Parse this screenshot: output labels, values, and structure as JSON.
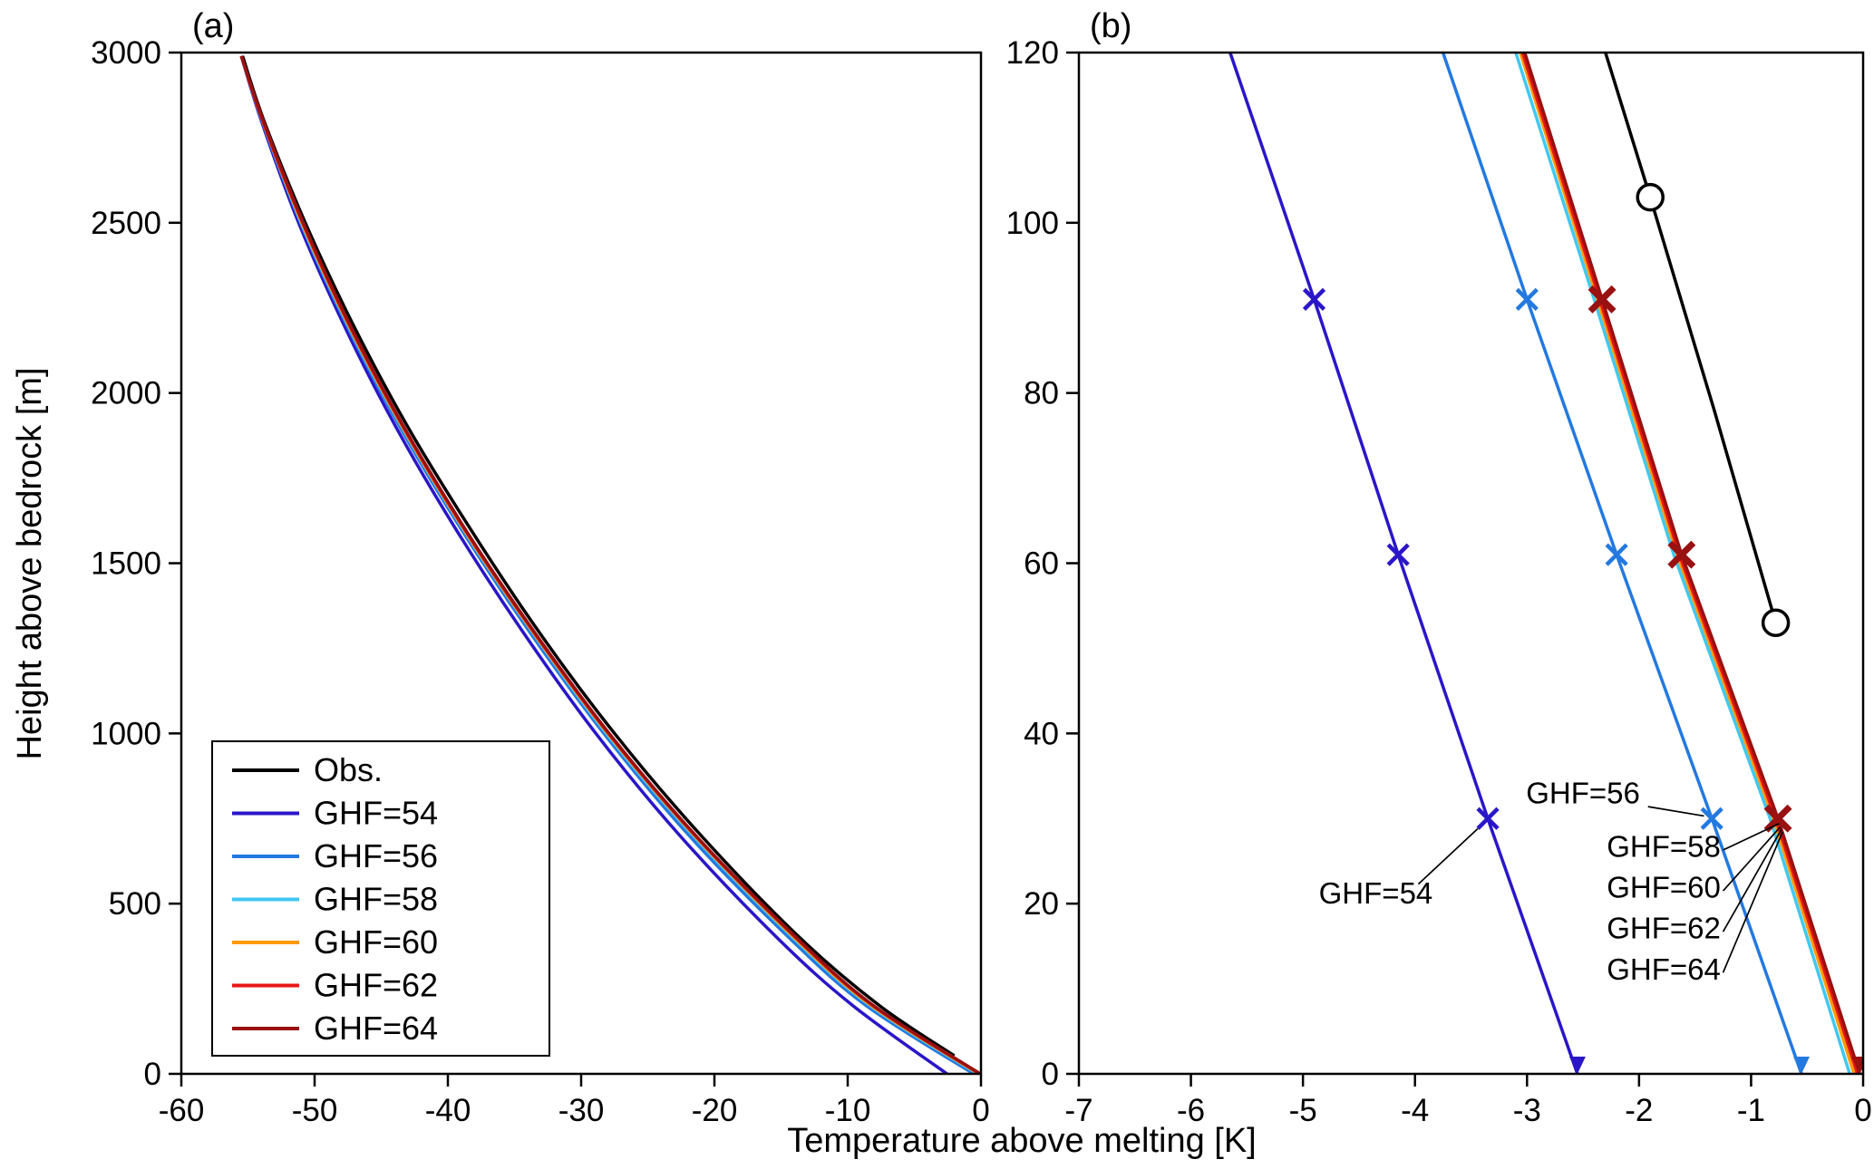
{
  "figure": {
    "background": "#ffffff",
    "shared_xlabel": "Temperature above melting [K]"
  },
  "chart_data": [
    {
      "id": "a",
      "type": "line",
      "panel_label": "(a)",
      "ylabel": "Height above bedrock [m]",
      "xlim": [
        -60,
        0
      ],
      "ylim": [
        0,
        3000
      ],
      "xticks": [
        -60,
        -50,
        -40,
        -30,
        -20,
        -10,
        0
      ],
      "yticks": [
        0,
        500,
        1000,
        1500,
        2000,
        2500,
        3000
      ],
      "smooth": true,
      "grid": false,
      "legend": {
        "show": true,
        "position": "lower-left"
      },
      "series": [
        {
          "name": "Obs.",
          "color": "#000000",
          "points": [
            [
              -55.4,
              2990
            ],
            [
              -53.8,
              2800
            ],
            [
              -50.7,
              2500
            ],
            [
              -47.1,
              2200
            ],
            [
              -43.0,
              1900
            ],
            [
              -38.3,
              1600
            ],
            [
              -33.2,
              1300
            ],
            [
              -27.5,
              1000
            ],
            [
              -21.0,
              700
            ],
            [
              -13.6,
              400
            ],
            [
              -7.6,
              200
            ],
            [
              -2.0,
              53
            ]
          ]
        },
        {
          "name": "GHF=54",
          "color": "#2a16c8",
          "points": [
            [
              -55.5,
              2990
            ],
            [
              -54.0,
              2800
            ],
            [
              -51.2,
              2500
            ],
            [
              -47.8,
              2200
            ],
            [
              -43.9,
              1900
            ],
            [
              -39.4,
              1600
            ],
            [
              -34.4,
              1300
            ],
            [
              -28.9,
              1000
            ],
            [
              -22.6,
              700
            ],
            [
              -15.3,
              400
            ],
            [
              -9.6,
              200
            ],
            [
              -2.55,
              0
            ]
          ]
        },
        {
          "name": "GHF=56",
          "color": "#2379e0",
          "points": [
            [
              -55.5,
              2990
            ],
            [
              -53.95,
              2800
            ],
            [
              -51.05,
              2500
            ],
            [
              -47.6,
              2200
            ],
            [
              -43.6,
              1900
            ],
            [
              -39.0,
              1600
            ],
            [
              -33.9,
              1300
            ],
            [
              -28.3,
              1000
            ],
            [
              -21.9,
              700
            ],
            [
              -14.4,
              400
            ],
            [
              -8.6,
              200
            ],
            [
              -0.55,
              0
            ]
          ]
        },
        {
          "name": "GHF=58",
          "color": "#40c8f0",
          "points": [
            [
              -55.5,
              2990
            ],
            [
              -53.9,
              2800
            ],
            [
              -51.0,
              2500
            ],
            [
              -47.5,
              2200
            ],
            [
              -43.45,
              1900
            ],
            [
              -38.85,
              1600
            ],
            [
              -33.7,
              1300
            ],
            [
              -28.1,
              1000
            ],
            [
              -21.6,
              700
            ],
            [
              -14.1,
              400
            ],
            [
              -8.3,
              200
            ],
            [
              -0.25,
              0
            ]
          ]
        },
        {
          "name": "GHF=60",
          "color": "#ff9900",
          "points": [
            [
              -55.5,
              2990
            ],
            [
              -53.9,
              2800
            ],
            [
              -50.95,
              2500
            ],
            [
              -47.45,
              2200
            ],
            [
              -43.4,
              1900
            ],
            [
              -38.8,
              1600
            ],
            [
              -33.65,
              1300
            ],
            [
              -28.0,
              1000
            ],
            [
              -21.5,
              700
            ],
            [
              -14.0,
              400
            ],
            [
              -8.2,
              200
            ],
            [
              -0.15,
              0
            ]
          ]
        },
        {
          "name": "GHF=62",
          "color": "#e81515",
          "points": [
            [
              -55.5,
              2990
            ],
            [
              -53.9,
              2800
            ],
            [
              -50.9,
              2500
            ],
            [
              -47.4,
              2200
            ],
            [
              -43.35,
              1900
            ],
            [
              -38.75,
              1600
            ],
            [
              -33.6,
              1300
            ],
            [
              -27.95,
              1000
            ],
            [
              -21.45,
              700
            ],
            [
              -13.9,
              400
            ],
            [
              -8.1,
              200
            ],
            [
              -0.1,
              0
            ]
          ]
        },
        {
          "name": "GHF=64",
          "color": "#991111",
          "points": [
            [
              -55.5,
              2990
            ],
            [
              -53.85,
              2800
            ],
            [
              -50.85,
              2500
            ],
            [
              -47.35,
              2200
            ],
            [
              -43.3,
              1900
            ],
            [
              -38.7,
              1600
            ],
            [
              -33.55,
              1300
            ],
            [
              -27.9,
              1000
            ],
            [
              -21.4,
              700
            ],
            [
              -13.85,
              400
            ],
            [
              -8.05,
              200
            ],
            [
              -0.05,
              0
            ]
          ]
        }
      ]
    },
    {
      "id": "b",
      "type": "line",
      "panel_label": "(b)",
      "xlim": [
        -7,
        0
      ],
      "ylim": [
        0,
        120
      ],
      "xticks": [
        -7,
        -6,
        -5,
        -4,
        -3,
        -2,
        -1,
        0
      ],
      "yticks": [
        0,
        20,
        40,
        60,
        80,
        100,
        120
      ],
      "smooth": false,
      "grid": false,
      "series": [
        {
          "name": "Obs.",
          "color": "#000000",
          "points": [
            [
              -2.3,
              120
            ],
            [
              -1.9,
              103
            ],
            [
              -1.33,
              78
            ],
            [
              -0.78,
              53
            ]
          ],
          "marker_shape": "circle",
          "marker_size": 14,
          "markers": [
            [
              -1.9,
              103
            ],
            [
              -0.78,
              53
            ]
          ]
        },
        {
          "name": "GHF=54",
          "color": "#2a16c8",
          "points": [
            [
              -5.65,
              120
            ],
            [
              -4.9,
              91
            ],
            [
              -4.15,
              61
            ],
            [
              -3.35,
              30
            ],
            [
              -2.55,
              0
            ]
          ],
          "marker_shape": "x",
          "marker_size": 11,
          "marker_width": 4.5,
          "markers": [
            [
              -4.9,
              91
            ],
            [
              -4.15,
              61
            ],
            [
              -3.35,
              30
            ]
          ],
          "end_arrow": true
        },
        {
          "name": "GHF=56",
          "color": "#2379e0",
          "points": [
            [
              -3.75,
              120
            ],
            [
              -3.0,
              91
            ],
            [
              -2.2,
              61
            ],
            [
              -1.35,
              30
            ],
            [
              -0.55,
              0
            ]
          ],
          "marker_shape": "x",
          "marker_size": 11,
          "marker_width": 4.5,
          "markers": [
            [
              -3.0,
              91
            ],
            [
              -2.2,
              61
            ],
            [
              -1.35,
              30
            ]
          ],
          "end_arrow": true
        },
        {
          "name": "GHF=58",
          "color": "#40c8f0",
          "points": [
            [
              -3.1,
              120
            ],
            [
              -2.4,
              91
            ],
            [
              -1.69,
              61
            ],
            [
              -0.83,
              30
            ],
            [
              -0.12,
              0
            ]
          ]
        },
        {
          "name": "GHF=60",
          "color": "#ff9900",
          "points": [
            [
              -3.06,
              120
            ],
            [
              -2.37,
              91
            ],
            [
              -1.66,
              61
            ],
            [
              -0.8,
              30
            ],
            [
              -0.08,
              0
            ]
          ]
        },
        {
          "name": "GHF=62",
          "color": "#e81515",
          "points": [
            [
              -3.04,
              120
            ],
            [
              -2.35,
              91
            ],
            [
              -1.64,
              61
            ],
            [
              -0.78,
              30
            ],
            [
              -0.05,
              0
            ]
          ]
        },
        {
          "name": "GHF=64",
          "color": "#991111",
          "points": [
            [
              -3.02,
              120
            ],
            [
              -2.33,
              91
            ],
            [
              -1.62,
              61
            ],
            [
              -0.76,
              30
            ],
            [
              -0.03,
              0
            ]
          ],
          "marker_shape": "x",
          "marker_size": 13,
          "marker_width": 7,
          "markers": [
            [
              -2.33,
              91
            ],
            [
              -1.62,
              61
            ],
            [
              -0.76,
              30
            ]
          ],
          "end_arrow": true
        }
      ],
      "annotations": [
        {
          "text": "GHF=54",
          "x": -4.35,
          "y": 20.0,
          "leader": [
            [
              -3.97,
              22.3
            ],
            [
              -3.44,
              28.8
            ]
          ]
        },
        {
          "text": "GHF=56",
          "x": -2.5,
          "y": 31.8,
          "leader": [
            [
              -1.92,
              31.4
            ],
            [
              -1.42,
              30.3
            ]
          ]
        },
        {
          "text": "GHF=58",
          "x": -1.78,
          "y": 25.5,
          "leader": [
            [
              -1.25,
              26.3
            ],
            [
              -0.75,
              29.4
            ]
          ]
        },
        {
          "text": "GHF=60",
          "x": -1.78,
          "y": 20.7,
          "leader": [
            [
              -1.25,
              21.5
            ],
            [
              -0.74,
              29.0
            ]
          ]
        },
        {
          "text": "GHF=62",
          "x": -1.78,
          "y": 15.9,
          "leader": [
            [
              -1.25,
              16.7
            ],
            [
              -0.73,
              28.7
            ]
          ]
        },
        {
          "text": "GHF=64",
          "x": -1.78,
          "y": 11.1,
          "leader": [
            [
              -1.25,
              11.9
            ],
            [
              -0.72,
              28.4
            ]
          ]
        }
      ]
    }
  ]
}
